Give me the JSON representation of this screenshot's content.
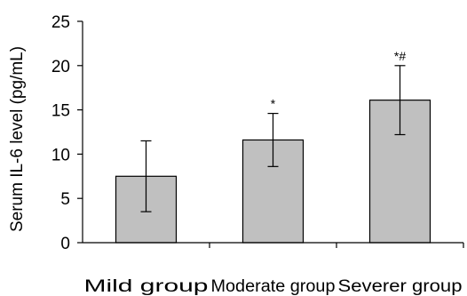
{
  "chart_data": {
    "type": "bar",
    "title": "",
    "xlabel": "",
    "ylabel": "Serum IL-6 level (pg/mL)",
    "ylim": [
      0,
      25
    ],
    "yticks": [
      0,
      5,
      10,
      15,
      20,
      25
    ],
    "ytick_labels": [
      "0",
      "5",
      "10",
      "15",
      "20",
      "25"
    ],
    "grid": false,
    "categories": [
      "Mild group",
      "Moderate group",
      "Severer group"
    ],
    "values": [
      7.5,
      11.6,
      16.1
    ],
    "error_upper": [
      11.5,
      14.6,
      20.0
    ],
    "error_lower": [
      3.5,
      8.6,
      12.2
    ],
    "annotations": [
      "",
      "*",
      "*#"
    ],
    "bar_color": "#c0c0c0"
  }
}
